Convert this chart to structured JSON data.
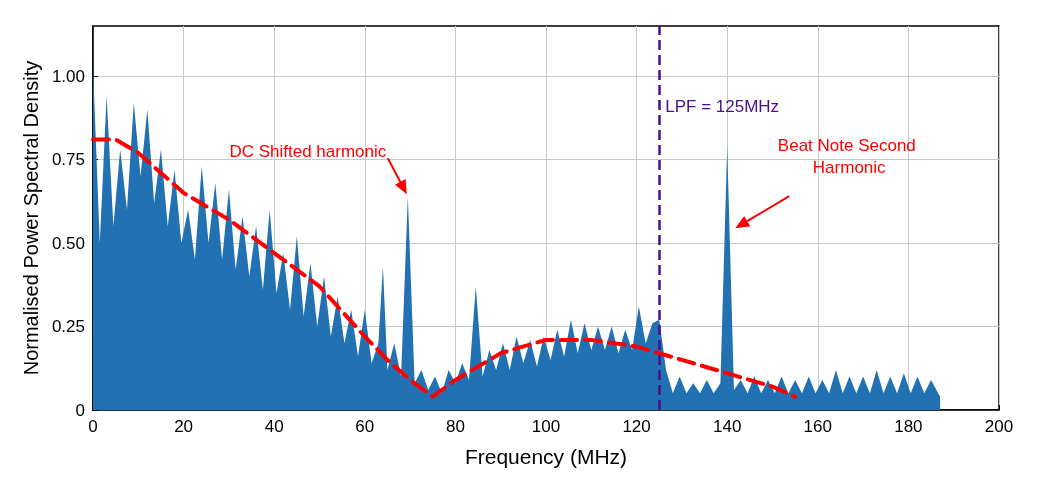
{
  "chart_data": {
    "type": "area",
    "xlabel": "Frequency (MHz)",
    "ylabel": "Normalised Power Spectral Density",
    "xlim": [
      0,
      200
    ],
    "xticks": [
      0,
      20,
      40,
      60,
      80,
      100,
      120,
      140,
      160,
      180,
      200
    ],
    "ylim": [
      0,
      1.15
    ],
    "yticks": [
      0,
      0.25,
      {
        "value": 0.5,
        "label": "0.50"
      },
      0.75,
      {
        "value": 1,
        "label": "1.00"
      }
    ],
    "grid": true,
    "series": [
      {
        "color": "#2271b2",
        "x": [
          0,
          1.5,
          3,
          4.5,
          6,
          7.5,
          9,
          10.5,
          12,
          13.5,
          15,
          16.5,
          18,
          19.5,
          21,
          22.5,
          24,
          25.5,
          27,
          28.5,
          30,
          31.5,
          33,
          34.5,
          36,
          37.5,
          39,
          40.5,
          42,
          43.5,
          45,
          46.5,
          48,
          49.5,
          51,
          52.5,
          54,
          55.5,
          57,
          58.5,
          60,
          61.5,
          63,
          64,
          65,
          66.5,
          68,
          69.5,
          71,
          72.5,
          74,
          75.5,
          77,
          78.5,
          80,
          81.5,
          83,
          84.5,
          86,
          87.5,
          89,
          90.5,
          92,
          93.5,
          95,
          96.5,
          98,
          99.5,
          101,
          102.5,
          104,
          105.5,
          107,
          108.5,
          110,
          111.5,
          113,
          114.5,
          116,
          117.5,
          119,
          120.5,
          122,
          123.5,
          125,
          126.5,
          128,
          129.5,
          131,
          132.5,
          134,
          135.5,
          137,
          138.5,
          140,
          141.5,
          143,
          144.5,
          146,
          147.5,
          149,
          150.5,
          152,
          153.5,
          155,
          156.5,
          158,
          159.5,
          161,
          162.5,
          164,
          165.5,
          167,
          168.5,
          170,
          171.5,
          173,
          174.5,
          176,
          177.5,
          179,
          180.5,
          182,
          183.5,
          185,
          187
        ],
        "values": [
          1.03,
          0.5,
          0.94,
          0.55,
          0.78,
          0.6,
          0.92,
          0.7,
          0.9,
          0.62,
          0.78,
          0.55,
          0.72,
          0.5,
          0.6,
          0.45,
          0.73,
          0.5,
          0.68,
          0.45,
          0.66,
          0.42,
          0.58,
          0.4,
          0.55,
          0.36,
          0.6,
          0.35,
          0.47,
          0.3,
          0.52,
          0.28,
          0.44,
          0.25,
          0.4,
          0.22,
          0.34,
          0.2,
          0.3,
          0.16,
          0.3,
          0.14,
          0.2,
          0.43,
          0.12,
          0.2,
          0.1,
          0.64,
          0.08,
          0.12,
          0.06,
          0.1,
          0.05,
          0.12,
          0.08,
          0.14,
          0.09,
          0.37,
          0.1,
          0.18,
          0.12,
          0.2,
          0.12,
          0.22,
          0.14,
          0.21,
          0.13,
          0.22,
          0.15,
          0.24,
          0.16,
          0.27,
          0.17,
          0.26,
          0.18,
          0.25,
          0.18,
          0.25,
          0.17,
          0.24,
          0.18,
          0.31,
          0.2,
          0.26,
          0.27,
          0.12,
          0.05,
          0.1,
          0.05,
          0.08,
          0.05,
          0.09,
          0.05,
          0.08,
          0.79,
          0.06,
          0.09,
          0.05,
          0.1,
          0.05,
          0.09,
          0.05,
          0.1,
          0.05,
          0.09,
          0.05,
          0.1,
          0.05,
          0.09,
          0.05,
          0.12,
          0.05,
          0.1,
          0.05,
          0.1,
          0.05,
          0.12,
          0.05,
          0.1,
          0.05,
          0.11,
          0.05,
          0.1,
          0.05,
          0.09,
          0.04
        ]
      },
      {
        "type": "line",
        "color": "#ff0000",
        "line_style": "dashed",
        "marker": "none",
        "x": [
          0,
          5,
          10,
          20,
          30,
          40,
          50,
          60,
          65,
          70,
          75,
          80,
          90,
          100,
          110,
          120,
          130,
          140,
          150,
          155
        ],
        "values": [
          0.81,
          0.81,
          0.77,
          0.65,
          0.57,
          0.47,
          0.37,
          0.22,
          0.15,
          0.09,
          0.04,
          0.09,
          0.17,
          0.21,
          0.21,
          0.19,
          0.15,
          0.11,
          0.07,
          0.04
        ]
      }
    ],
    "ref_lines": [
      {
        "axis": "x",
        "value": 125,
        "label": "LPF = 125MHz",
        "color": "#4b0f8c",
        "line_style": "dashed"
      }
    ],
    "annotations": [
      {
        "text": "DC Shifted harmonic",
        "x": 69.5,
        "y": 0.64
      },
      {
        "text": "Beat Note Second Harmonic",
        "x": 140,
        "y": 0.79
      }
    ]
  }
}
